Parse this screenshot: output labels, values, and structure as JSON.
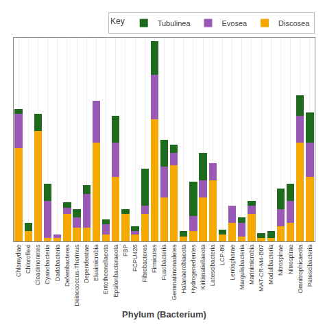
{
  "chart_data": {
    "type": "bar",
    "stacked": true,
    "xlabel": "Phylum (Bacterium)",
    "legend_title": "Key",
    "legend": "upper right",
    "grid": true,
    "tick_labels": "x",
    "ylim": [
      0,
      1.2
    ],
    "yticks": [],
    "categories": [
      "Chlamydiae",
      "Chloroflexi",
      "Cloacimonetes",
      "Cyanobacteria",
      "Dadabacteria",
      "Deferribacteres",
      "Deinococcus-Thermus",
      "Dependentiae",
      "Elusimicrobia",
      "Entotheonellaeota",
      "Epsilonbacteraeota",
      "FBP",
      "FCPU426",
      "Fibrobacteres",
      "Firmicutes",
      "Fusobacteria",
      "Gemmatimonadetes",
      "Halanaerobiaeota",
      "Hydrogenedentes",
      "Kiritimatiellaeota",
      "Latescibacteria",
      "LCP-89",
      "Lentispharae",
      "Margulisbacteria",
      "Marinimicrobia",
      "MAT-CR-M4-B07",
      "Modulibacteria",
      "Nitrospinae",
      "Nitrospirae",
      "Omnitrophicaeota",
      "Patescibacteria"
    ],
    "series": [
      {
        "name": "Discosea",
        "color": "#F5A800",
        "values": [
          0.55,
          0.06,
          0.65,
          0.02,
          0.02,
          0.16,
          0.08,
          0.08,
          0.58,
          0.04,
          0.38,
          0.16,
          0.04,
          0.16,
          0.72,
          0.26,
          0.45,
          0.03,
          0.06,
          0.26,
          0.36,
          0.04,
          0.11,
          0.03,
          0.16,
          0.02,
          0.02,
          0.09,
          0.11,
          0.58,
          0.38
        ]
      },
      {
        "name": "Evosea",
        "color": "#9B59B6",
        "values": [
          0.2,
          0.0,
          0.0,
          0.22,
          0.02,
          0.04,
          0.06,
          0.2,
          0.25,
          0.06,
          0.2,
          0.0,
          0.02,
          0.05,
          0.26,
          0.18,
          0.07,
          0.0,
          0.09,
          0.1,
          0.1,
          0.0,
          0.1,
          0.08,
          0.05,
          0.0,
          0.0,
          0.1,
          0.13,
          0.16,
          0.2
        ]
      },
      {
        "name": "Tubulinea",
        "color": "#1E6B1E",
        "values": [
          0.03,
          0.05,
          0.1,
          0.1,
          0.0,
          0.03,
          0.05,
          0.05,
          0.0,
          0.03,
          0.16,
          0.03,
          0.03,
          0.22,
          0.2,
          0.16,
          0.05,
          0.03,
          0.2,
          0.16,
          0.0,
          0.03,
          0.0,
          0.03,
          0.03,
          0.03,
          0.04,
          0.12,
          0.1,
          0.12,
          0.18
        ]
      }
    ]
  }
}
